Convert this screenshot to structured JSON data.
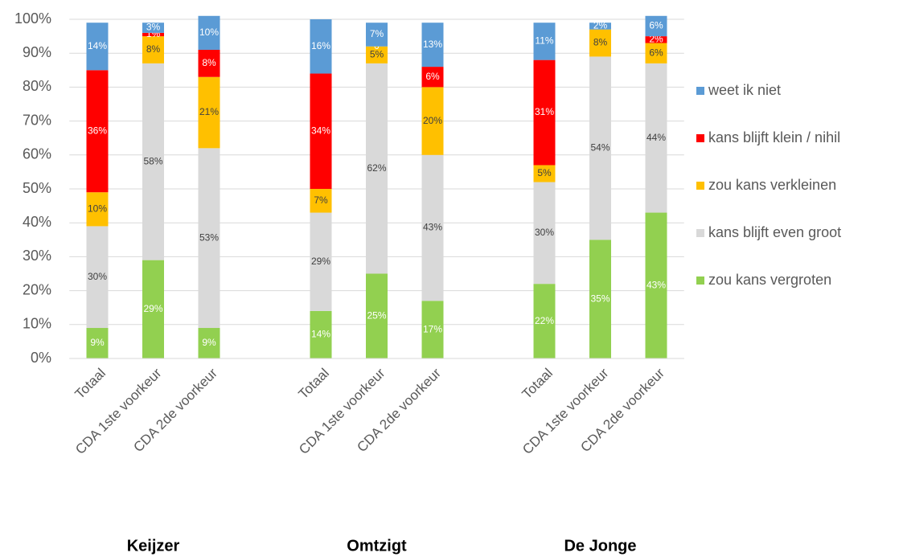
{
  "chart_data": {
    "type": "stacked-bar",
    "categories": [
      "Totaal",
      "CDA 1ste voorkeur",
      "CDA 2de voorkeur",
      null,
      "Totaal",
      "CDA 1ste voorkeur",
      "CDA 2de voorkeur",
      null,
      "Totaal",
      "CDA 1ste voorkeur",
      "CDA 2de voorkeur"
    ],
    "group_labels": [
      "Keijzer",
      "Omtzigt",
      "De Jonge"
    ],
    "series": [
      {
        "name": "zou kans vergroten",
        "color": "#92d050",
        "label_color": "#ffffff",
        "values": [
          9,
          29,
          9,
          null,
          14,
          25,
          17,
          null,
          22,
          35,
          43
        ],
        "value_labels": [
          "9%",
          "29%",
          "9%",
          null,
          "14%",
          "25%",
          "17%",
          null,
          "22%",
          "35%",
          "43%"
        ]
      },
      {
        "name": "kans blijft even groot",
        "color": "#d9d9d9",
        "label_color": "#404040",
        "values": [
          30,
          58,
          53,
          null,
          29,
          62,
          43,
          null,
          30,
          54,
          44
        ],
        "value_labels": [
          "30%",
          "58%",
          "53%",
          null,
          "29%",
          "62%",
          "43%",
          null,
          "30%",
          "54%",
          "44%"
        ]
      },
      {
        "name": "zou kans verkleinen",
        "color": "#ffc000",
        "label_color": "#404040",
        "values": [
          10,
          8,
          21,
          null,
          7,
          5,
          20,
          null,
          5,
          8,
          6
        ],
        "value_labels": [
          "10%",
          "8%",
          "21%",
          null,
          "7%",
          "5%",
          "20%",
          null,
          "5%",
          "8%",
          "6%"
        ]
      },
      {
        "name": "kans blijft klein / nihil",
        "color": "#ff0000",
        "label_color": "#ffffff",
        "values": [
          36,
          1,
          8,
          null,
          34,
          0,
          6,
          null,
          31,
          null,
          2
        ],
        "value_labels": [
          "36%",
          "1%",
          "8%",
          null,
          "34%",
          "0",
          "6%",
          null,
          "31%",
          null,
          "2%"
        ]
      },
      {
        "name": "weet ik niet",
        "color": "#5b9bd5",
        "label_color": "#ffffff",
        "values": [
          14,
          3,
          10,
          null,
          16,
          7,
          13,
          null,
          11,
          2,
          6
        ],
        "value_labels": [
          "14%",
          "3%",
          "10%",
          null,
          "16%",
          "7%",
          "13%",
          null,
          "11%",
          "2%",
          "6%"
        ]
      }
    ],
    "ylim": [
      0,
      100
    ],
    "yticks": [
      {
        "value": 0,
        "label": "0%"
      },
      {
        "value": 10,
        "label": "10%"
      },
      {
        "value": 20,
        "label": "20%"
      },
      {
        "value": 30,
        "label": "30%"
      },
      {
        "value": 40,
        "label": "40%"
      },
      {
        "value": 50,
        "label": "50%"
      },
      {
        "value": 60,
        "label": "60%"
      },
      {
        "value": 70,
        "label": "70%"
      },
      {
        "value": 80,
        "label": "80%"
      },
      {
        "value": 90,
        "label": "90%"
      },
      {
        "value": 100,
        "label": "100%"
      }
    ],
    "grid": true,
    "legend": "right"
  }
}
